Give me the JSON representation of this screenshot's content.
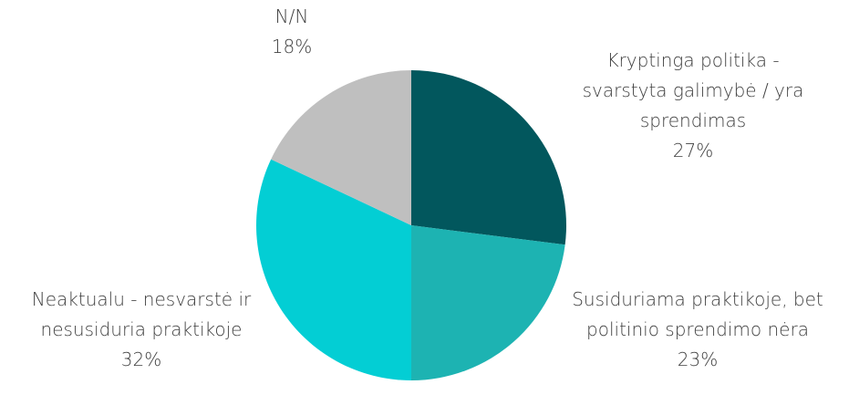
{
  "chart_data": {
    "type": "pie",
    "title": "",
    "slices": [
      {
        "label": [
          "Kryptinga politika -",
          "svarstyta galimybė / yra",
          "sprendimas"
        ],
        "value": 27,
        "value_label": "27%",
        "color": "#02575D"
      },
      {
        "label": [
          "Susiduriama praktikoje, bet",
          "politinio sprendimo nėra"
        ],
        "value": 23,
        "value_label": "23%",
        "color": "#1DB3B2"
      },
      {
        "label": [
          "Neaktualu - nesvarstė ir",
          "nesusiduria praktikoje"
        ],
        "value": 32,
        "value_label": "32%",
        "color": "#03CED4"
      },
      {
        "label": [
          "N/N"
        ],
        "value": 18,
        "value_label": "18%",
        "color": "#BFBFBF"
      }
    ]
  }
}
